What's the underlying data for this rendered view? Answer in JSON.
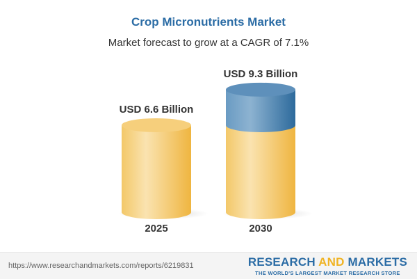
{
  "title": "Crop Micronutrients Market",
  "subtitle": "Market forecast to grow at a CAGR of 7.1%",
  "chart_data": {
    "type": "bar",
    "style": "3d-cylinder",
    "categories": [
      "2025",
      "2030"
    ],
    "values": [
      6.6,
      9.3
    ],
    "data_labels": [
      "USD 6.6 Billion",
      "USD 9.3 Billion"
    ],
    "unit": "USD Billion",
    "colors": {
      "base": "#f3c45e",
      "growth": "#4f86b3"
    }
  },
  "footer": {
    "url": "https://www.researchandmarkets.com/reports/6219831",
    "logo_part1": "RESEARCH ",
    "logo_part2": "AND",
    "logo_part3": " MARKETS",
    "tagline": "THE WORLD'S LARGEST MARKET RESEARCH STORE"
  }
}
